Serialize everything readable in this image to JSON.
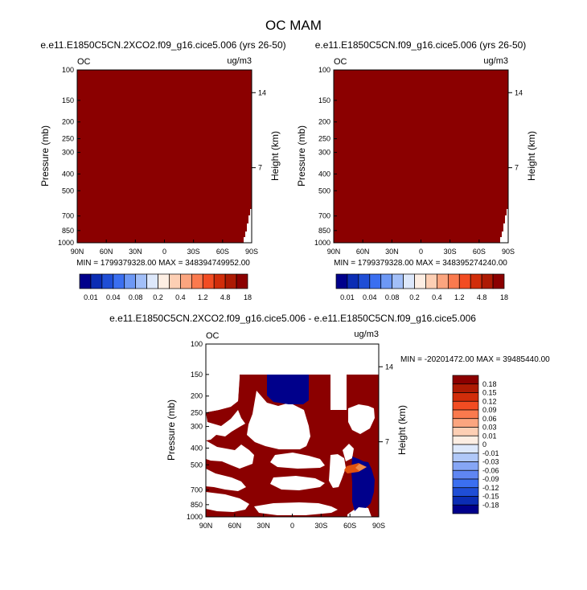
{
  "title": "OC MAM",
  "chart_data": [
    {
      "type": "heatmap",
      "title": "e.e11.E1850C5CN.2XCO2.f09_g16.cice5.006 (yrs 26-50)",
      "left_label": "OC",
      "right_label": "ug/m3",
      "ylabel": "Pressure (mb)",
      "ylabel_right": "Height (km)",
      "x_ticks": [
        "90N",
        "60N",
        "30N",
        "0",
        "30S",
        "60S",
        "90S"
      ],
      "y_ticks": [
        "100",
        "150",
        "200",
        "250",
        "300",
        "400",
        "500",
        "700",
        "850",
        "1000"
      ],
      "y_right_ticks": [
        "14",
        "7"
      ],
      "min_max_text": "MIN = 1799379328.00   MAX = 348394749952.00",
      "field_color": "#8b0000",
      "colorbar": {
        "colors": [
          "#00008b",
          "#0b2db4",
          "#1f4ed6",
          "#3b6ff0",
          "#6d98f5",
          "#a2bff8",
          "#dde8fb",
          "#fdeee3",
          "#fdcfb4",
          "#fba57f",
          "#fa7a4e",
          "#f24c22",
          "#d12d0a",
          "#ad1a03",
          "#8b0000"
        ],
        "labels": [
          "0.01",
          "0.04",
          "0.08",
          "0.2",
          "0.4",
          "1.2",
          "4.8",
          "18"
        ]
      }
    },
    {
      "type": "heatmap",
      "title": "e.e11.E1850C5CN.f09_g16.cice5.006 (yrs 26-50)",
      "left_label": "OC",
      "right_label": "ug/m3",
      "ylabel": "Pressure (mb)",
      "ylabel_right": "Height (km)",
      "x_ticks": [
        "90N",
        "60N",
        "30N",
        "0",
        "30S",
        "60S",
        "90S"
      ],
      "y_ticks": [
        "100",
        "150",
        "200",
        "250",
        "300",
        "400",
        "500",
        "700",
        "850",
        "1000"
      ],
      "y_right_ticks": [
        "14",
        "7"
      ],
      "min_max_text": "MIN = 1799379328.00   MAX = 348395274240.00",
      "field_color": "#8b0000",
      "colorbar": {
        "colors": [
          "#00008b",
          "#0b2db4",
          "#1f4ed6",
          "#3b6ff0",
          "#6d98f5",
          "#a2bff8",
          "#dde8fb",
          "#fdeee3",
          "#fdcfb4",
          "#fba57f",
          "#fa7a4e",
          "#f24c22",
          "#d12d0a",
          "#ad1a03",
          "#8b0000"
        ],
        "labels": [
          "0.01",
          "0.04",
          "0.08",
          "0.2",
          "0.4",
          "1.2",
          "4.8",
          "18"
        ]
      }
    },
    {
      "type": "heatmap",
      "title": "e.e11.E1850C5CN.2XCO2.f09_g16.cice5.006 - e.e11.E1850C5CN.f09_g16.cice5.006",
      "left_label": "OC",
      "right_label": "ug/m3",
      "ylabel": "Pressure (mb)",
      "ylabel_right": "Height (km)",
      "x_ticks": [
        "90N",
        "60N",
        "30N",
        "0",
        "30S",
        "60S",
        "90S"
      ],
      "y_ticks": [
        "100",
        "150",
        "200",
        "250",
        "300",
        "400",
        "500",
        "700",
        "850",
        "1000"
      ],
      "y_right_ticks": [
        "14",
        "7"
      ],
      "min_max_text": "MIN = -20201472.00  MAX = 39485440.00",
      "colorbar": {
        "colors": [
          "#00008b",
          "#0b2db4",
          "#1f4ed6",
          "#3b6ff0",
          "#5f86f2",
          "#86a6f5",
          "#b0c8f8",
          "#dde8fb",
          "#fdeee3",
          "#fdcfb4",
          "#fba57f",
          "#fa7a4e",
          "#f24c22",
          "#d12d0a",
          "#ad1a03",
          "#8b0000"
        ],
        "labels": [
          "0.18",
          "0.15",
          "0.12",
          "0.09",
          "0.06",
          "0.03",
          "0.01",
          "0",
          "-0.01",
          "-0.03",
          "-0.06",
          "-0.09",
          "-0.12",
          "-0.15",
          "-0.18"
        ]
      },
      "colors": {
        "positive": "#8b0000",
        "negative": "#00008b",
        "orange": "#e0520f"
      }
    }
  ]
}
